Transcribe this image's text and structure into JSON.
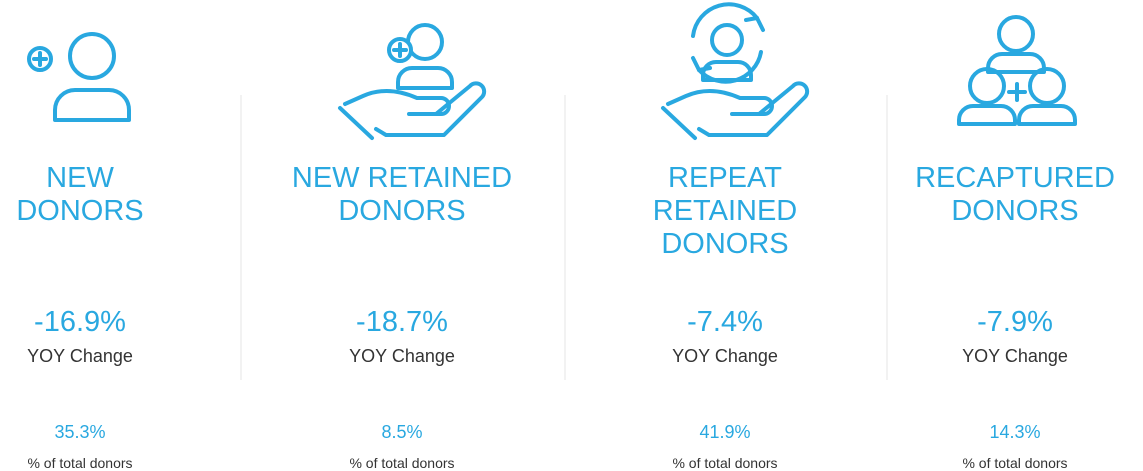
{
  "columns": [
    {
      "title_lines": [
        "NEW",
        "DONORS"
      ],
      "yoy": "-16.9%",
      "yoy_label": "YOY Change",
      "share": "35.3%",
      "share_label": "% of total donors"
    },
    {
      "title_lines": [
        "NEW RETAINED",
        "DONORS"
      ],
      "yoy": "-18.7%",
      "yoy_label": "YOY Change",
      "share": "8.5%",
      "share_label": "% of total donors"
    },
    {
      "title_lines": [
        "REPEAT",
        "RETAINED",
        "DONORS"
      ],
      "yoy": "-7.4%",
      "yoy_label": "YOY Change",
      "share": "41.9%",
      "share_label": "% of total donors"
    },
    {
      "title_lines": [
        "RECAPTURED",
        "DONORS"
      ],
      "yoy": "-7.9%",
      "yoy_label": "YOY Change",
      "share": "14.3%",
      "share_label": "% of total donors"
    }
  ]
}
